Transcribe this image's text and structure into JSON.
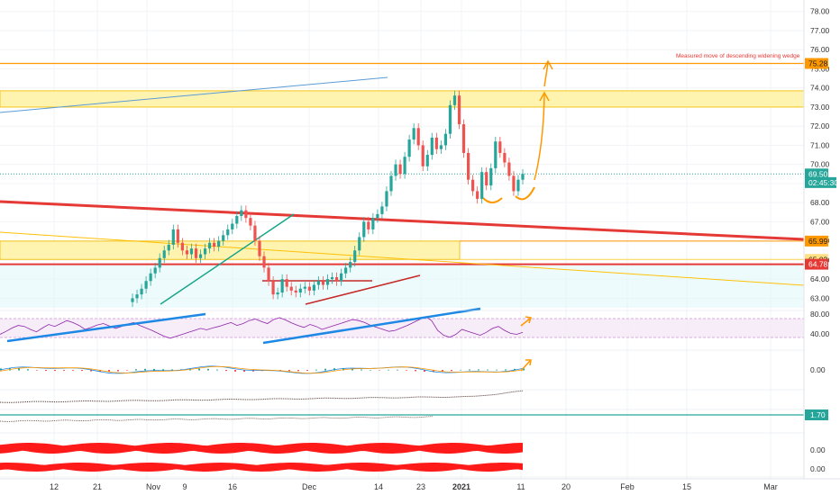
{
  "chart_data": {
    "type": "line",
    "title": "",
    "annotation": "Measured move of descending widening wedge",
    "price_axis": {
      "range": [
        62.5,
        78.6
      ],
      "ticks": [
        "78.00",
        "77.00",
        "76.00",
        "75.00",
        "74.00",
        "73.00",
        "72.00",
        "71.00",
        "70.00",
        "69.00",
        "68.00",
        "67.00",
        "66.00",
        "65.00",
        "64.00",
        "63.00"
      ]
    },
    "price_badges": [
      {
        "name": "target",
        "label": "75.28",
        "value": 75.28,
        "bg": "#ff9800",
        "fg": "#222222"
      },
      {
        "name": "last-price",
        "label": "69.50",
        "value": 69.5,
        "bg": "#26a69a",
        "fg": "#ffffff"
      },
      {
        "name": "countdown",
        "label": "02:45:30",
        "value": 69.05,
        "bg": "#26a69a",
        "fg": "#ffffff"
      },
      {
        "name": "zone-top",
        "label": "65.99",
        "value": 65.99,
        "bg": "#ff9800",
        "fg": "#222222"
      },
      {
        "name": "zone-bottom",
        "label": "65.03",
        "value": 65.03,
        "bg": "#ffe082",
        "fg": "#222222"
      },
      {
        "name": "support",
        "label": "64.78",
        "value": 64.78,
        "bg": "#e53935",
        "fg": "#ffffff"
      }
    ],
    "rsi_axis": {
      "ticks": [
        "80.00",
        "40.00"
      ]
    },
    "macd_axis": {
      "ticks": [
        "0.00"
      ]
    },
    "indicator_badge": {
      "label": "1.70",
      "bg": "#26a69a"
    },
    "osc_axis": {
      "ticks": [
        "0.00",
        "0.00"
      ]
    },
    "x_ticks": [
      {
        "label": "12",
        "bold": false
      },
      {
        "label": "21",
        "bold": false
      },
      {
        "label": "Nov",
        "bold": false
      },
      {
        "label": "9",
        "bold": false
      },
      {
        "label": "16",
        "bold": false
      },
      {
        "label": "Dec",
        "bold": false
      },
      {
        "label": "14",
        "bold": false
      },
      {
        "label": "23",
        "bold": false
      },
      {
        "label": "2021",
        "bold": true
      },
      {
        "label": "11",
        "bold": false
      },
      {
        "label": "20",
        "bold": false
      },
      {
        "label": "Feb",
        "bold": false
      },
      {
        "label": "15",
        "bold": false
      },
      {
        "label": "Mar",
        "bold": false
      }
    ],
    "price_series": {
      "name": "",
      "values": [
        63.0,
        63.2,
        63.5,
        63.9,
        64.3,
        64.6,
        65.1,
        65.5,
        65.8,
        66.6,
        65.9,
        65.5,
        65.3,
        65.6,
        65.1,
        65.3,
        65.6,
        65.9,
        65.7,
        66.0,
        66.3,
        66.6,
        66.9,
        67.3,
        67.6,
        67.2,
        66.8,
        66.0,
        65.2,
        64.6,
        63.9,
        63.2,
        63.3,
        64.0,
        63.6,
        63.4,
        63.3,
        63.5,
        63.6,
        63.4,
        63.7,
        63.9,
        63.7,
        64.0,
        64.1,
        63.9,
        64.3,
        64.6,
        64.9,
        65.5,
        66.2,
        67.0,
        66.6,
        67.2,
        67.4,
        67.8,
        68.6,
        69.4,
        70.0,
        69.5,
        70.4,
        71.3,
        71.9,
        71.0,
        69.9,
        70.5,
        71.4,
        70.8,
        71.0,
        71.6,
        73.1,
        73.6,
        72.1,
        70.6,
        69.2,
        68.6,
        68.2,
        69.6,
        68.9,
        69.8,
        71.2,
        70.6,
        70.1,
        69.4,
        68.6,
        69.2,
        69.5
      ]
    },
    "rsi_series": {
      "values": [
        42,
        48,
        55,
        60,
        58,
        52,
        47,
        55,
        62,
        58,
        64,
        70,
        66,
        60,
        52,
        56,
        61,
        64,
        59,
        54,
        58,
        63,
        66,
        60,
        55,
        50,
        44,
        38,
        34,
        38,
        42,
        46,
        50,
        54,
        51,
        55,
        58,
        62,
        66,
        60,
        64,
        70,
        73,
        68,
        64,
        72,
        76,
        71,
        65,
        60,
        56,
        62,
        58,
        52,
        56,
        60,
        64,
        68,
        72,
        70,
        66,
        60,
        56,
        52,
        48,
        50,
        55,
        60,
        66,
        72,
        78,
        70,
        50,
        40,
        36,
        42,
        52,
        48,
        44,
        40,
        46,
        54,
        58,
        50,
        44,
        42,
        46
      ]
    },
    "annotations": [
      {
        "type": "zone",
        "name": "resistance-zone",
        "from": 73.0,
        "to": 73.85
      },
      {
        "type": "zone",
        "name": "breakout-zone",
        "from": 65.03,
        "to": 65.99
      },
      {
        "type": "hline",
        "name": "measured-move-line",
        "value": 75.28
      },
      {
        "type": "hline",
        "name": "support-line",
        "value": 64.78
      },
      {
        "type": "hline",
        "name": "last-price-line",
        "value": 69.5
      }
    ]
  }
}
